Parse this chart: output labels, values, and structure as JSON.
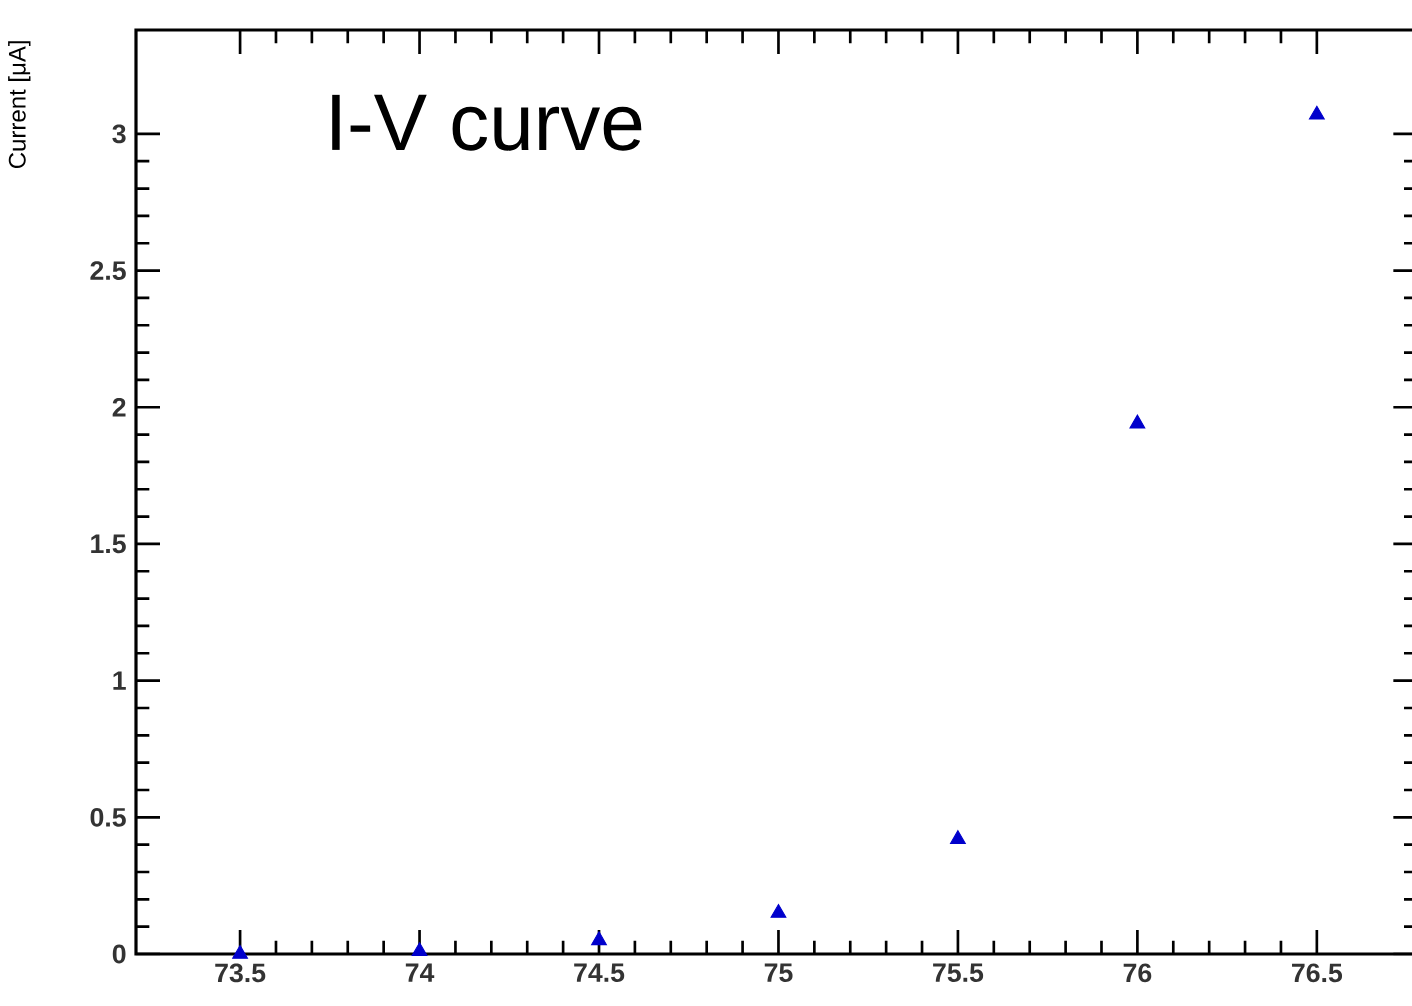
{
  "chart_data": {
    "type": "scatter",
    "title": "I-V curve",
    "ylabel": "Current [μA]",
    "x": [
      73.5,
      74,
      74.5,
      75,
      75.5,
      76,
      76.5
    ],
    "series": [
      {
        "color": "#0000cc",
        "values": [
          0.0,
          0.01,
          0.05,
          0.15,
          0.42,
          1.94,
          3.07
        ]
      }
    ],
    "marker": "triangle",
    "xlim": [
      73.21,
      76.78
    ],
    "ylim": [
      0,
      3.38
    ],
    "xticks": [
      73.5,
      74,
      74.5,
      75,
      75.5,
      76,
      76.5
    ],
    "yticks": [
      0,
      0.5,
      1,
      1.5,
      2,
      2.5,
      3
    ]
  }
}
